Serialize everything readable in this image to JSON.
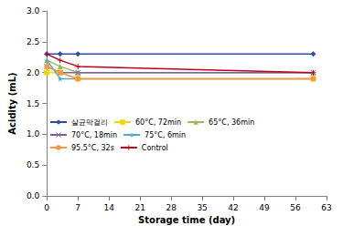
{
  "chart_data": {
    "type": "line",
    "x_label": "Storage time (day)",
    "y_label": "Acidity (mL)",
    "x": [
      0,
      3,
      7,
      60
    ],
    "xlim": [
      0,
      63
    ],
    "xticks": [
      0,
      7,
      14,
      21,
      28,
      35,
      42,
      49,
      56,
      63
    ],
    "ylim": [
      0,
      3
    ],
    "yticks": [
      {
        "value": 0,
        "label": "0.0"
      },
      0.5,
      {
        "value": 1,
        "label": "1.0"
      },
      1.5,
      {
        "value": 2,
        "label": "2.0"
      },
      2.5,
      {
        "value": 3,
        "label": "3.0"
      }
    ],
    "grid": false,
    "legend": "lower left",
    "series": [
      {
        "name": "살균막걸리",
        "color": "#2E4E9C",
        "marker": "diamond",
        "values": [
          2.3,
          2.3,
          2.3,
          2.3
        ]
      },
      {
        "name": "60°C, 72min",
        "color": "#F2D600",
        "marker": "square",
        "values": [
          2.0,
          2.0,
          1.9,
          1.9
        ]
      },
      {
        "name": "65°C, 36min",
        "color": "#9BBB59",
        "marker": "triangle",
        "values": [
          2.2,
          2.1,
          2.0,
          2.0
        ]
      },
      {
        "name": "70°C, 18min",
        "color": "#7F5FA0",
        "marker": "x",
        "values": [
          2.1,
          2.0,
          2.0,
          2.0
        ]
      },
      {
        "name": "75°C, 6min",
        "color": "#4BACC6",
        "marker": "star",
        "values": [
          2.2,
          1.9,
          1.9,
          1.9
        ]
      },
      {
        "name": "95.5°C, 32s",
        "color": "#F79646",
        "marker": "circle",
        "values": [
          2.1,
          2.0,
          1.9,
          1.9
        ]
      },
      {
        "name": "Control",
        "color": "#C0001A",
        "marker": "plus",
        "values": [
          2.3,
          2.2,
          2.1,
          2.0
        ]
      }
    ]
  }
}
